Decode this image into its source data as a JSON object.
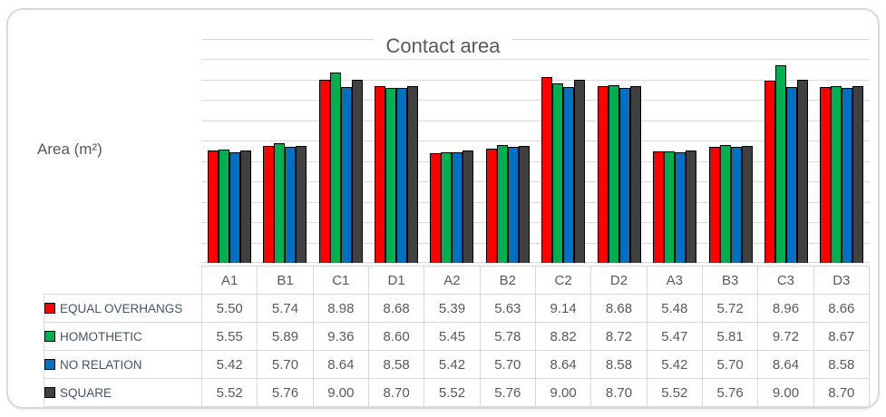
{
  "chart_data": {
    "type": "bar",
    "title": "Contact area",
    "ylabel": "Area (m²)",
    "xlabel": "",
    "categories": [
      "A1",
      "B1",
      "C1",
      "D1",
      "A2",
      "B2",
      "C2",
      "D2",
      "A3",
      "B3",
      "C3",
      "D3"
    ],
    "series": [
      {
        "name": "EQUAL OVERHANGS",
        "color": "#fe0000",
        "values": [
          5.5,
          5.74,
          8.98,
          8.68,
          5.39,
          5.63,
          9.14,
          8.68,
          5.48,
          5.72,
          8.96,
          8.66
        ]
      },
      {
        "name": "HOMOTHETIC",
        "color": "#00b050",
        "values": [
          5.55,
          5.89,
          9.36,
          8.6,
          5.45,
          5.78,
          8.82,
          8.72,
          5.47,
          5.81,
          9.72,
          8.67
        ]
      },
      {
        "name": "NO RELATION",
        "color": "#0070c0",
        "values": [
          5.42,
          5.7,
          8.64,
          8.58,
          5.42,
          5.7,
          8.64,
          8.58,
          5.42,
          5.7,
          8.64,
          8.58
        ]
      },
      {
        "name": "SQUARE",
        "color": "#404040",
        "values": [
          5.52,
          5.76,
          9.0,
          8.7,
          5.52,
          5.76,
          9.0,
          8.7,
          5.52,
          5.76,
          9.0,
          8.7
        ]
      }
    ],
    "ylim": [
      0,
      11
    ],
    "gridline_step": 1,
    "grid": true,
    "legend_position": "table-left",
    "value_format": "2-decimals",
    "colors": {
      "title_text": "#595959",
      "axis_label_text": "#595959",
      "table_text": "#595959",
      "legend_text": "#44546a",
      "gridline": "#d9d9d9",
      "table_border": "#d9d9d9",
      "bar_outline": "#000000",
      "card_border": "#d9d9d9"
    }
  }
}
